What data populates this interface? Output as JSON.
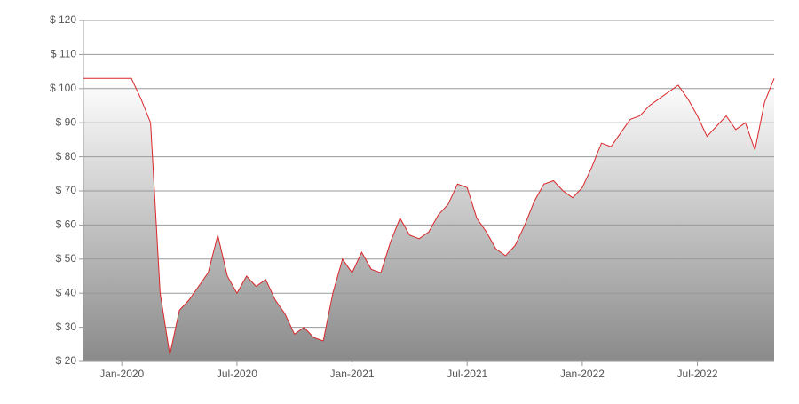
{
  "chart_data": {
    "type": "area",
    "categories": [
      null,
      null,
      null,
      null,
      "Jan-2020",
      null,
      null,
      null,
      null,
      null,
      null,
      null,
      null,
      null,
      null,
      null,
      "Jul-2020",
      null,
      null,
      null,
      null,
      null,
      null,
      null,
      null,
      null,
      null,
      null,
      "Jan-2021",
      null,
      null,
      null,
      null,
      null,
      null,
      null,
      null,
      null,
      null,
      null,
      "Jul-2021",
      null,
      null,
      null,
      null,
      null,
      null,
      null,
      null,
      null,
      null,
      null,
      "Jan-2022",
      null,
      null,
      null,
      null,
      null,
      null,
      null,
      null,
      null,
      null,
      null,
      "Jul-2022",
      null,
      null,
      null,
      null,
      null,
      null,
      null,
      null
    ],
    "values": [
      103,
      103,
      103,
      103,
      103,
      103,
      97,
      90,
      40,
      22,
      35,
      38,
      42,
      46,
      57,
      45,
      40,
      45,
      42,
      44,
      38,
      34,
      28,
      30,
      27,
      26,
      40,
      50,
      46,
      52,
      47,
      46,
      55,
      62,
      57,
      56,
      58,
      63,
      66,
      72,
      71,
      62,
      58,
      53,
      51,
      54,
      60,
      67,
      72,
      73,
      70,
      68,
      71,
      77,
      84,
      83,
      87,
      91,
      92,
      95,
      97,
      99,
      101,
      97,
      92,
      86,
      89,
      92,
      88,
      90,
      82,
      96,
      103
    ],
    "color": "#d9262a",
    "ylim": [
      20,
      120
    ],
    "yticks": [
      {
        "value": 20,
        "label": "$ 20"
      },
      {
        "value": 30,
        "label": "$ 30"
      },
      {
        "value": 40,
        "label": "$ 40"
      },
      {
        "value": 50,
        "label": "$ 50"
      },
      {
        "value": 60,
        "label": "$ 60"
      },
      {
        "value": 70,
        "label": "$ 70"
      },
      {
        "value": 80,
        "label": "$ 80"
      },
      {
        "value": 90,
        "label": "$ 90"
      },
      {
        "value": 100,
        "label": "$ 100"
      },
      {
        "value": 110,
        "label": "$ 110"
      },
      {
        "value": 120,
        "label": "$ 120"
      }
    ],
    "grid": true
  }
}
